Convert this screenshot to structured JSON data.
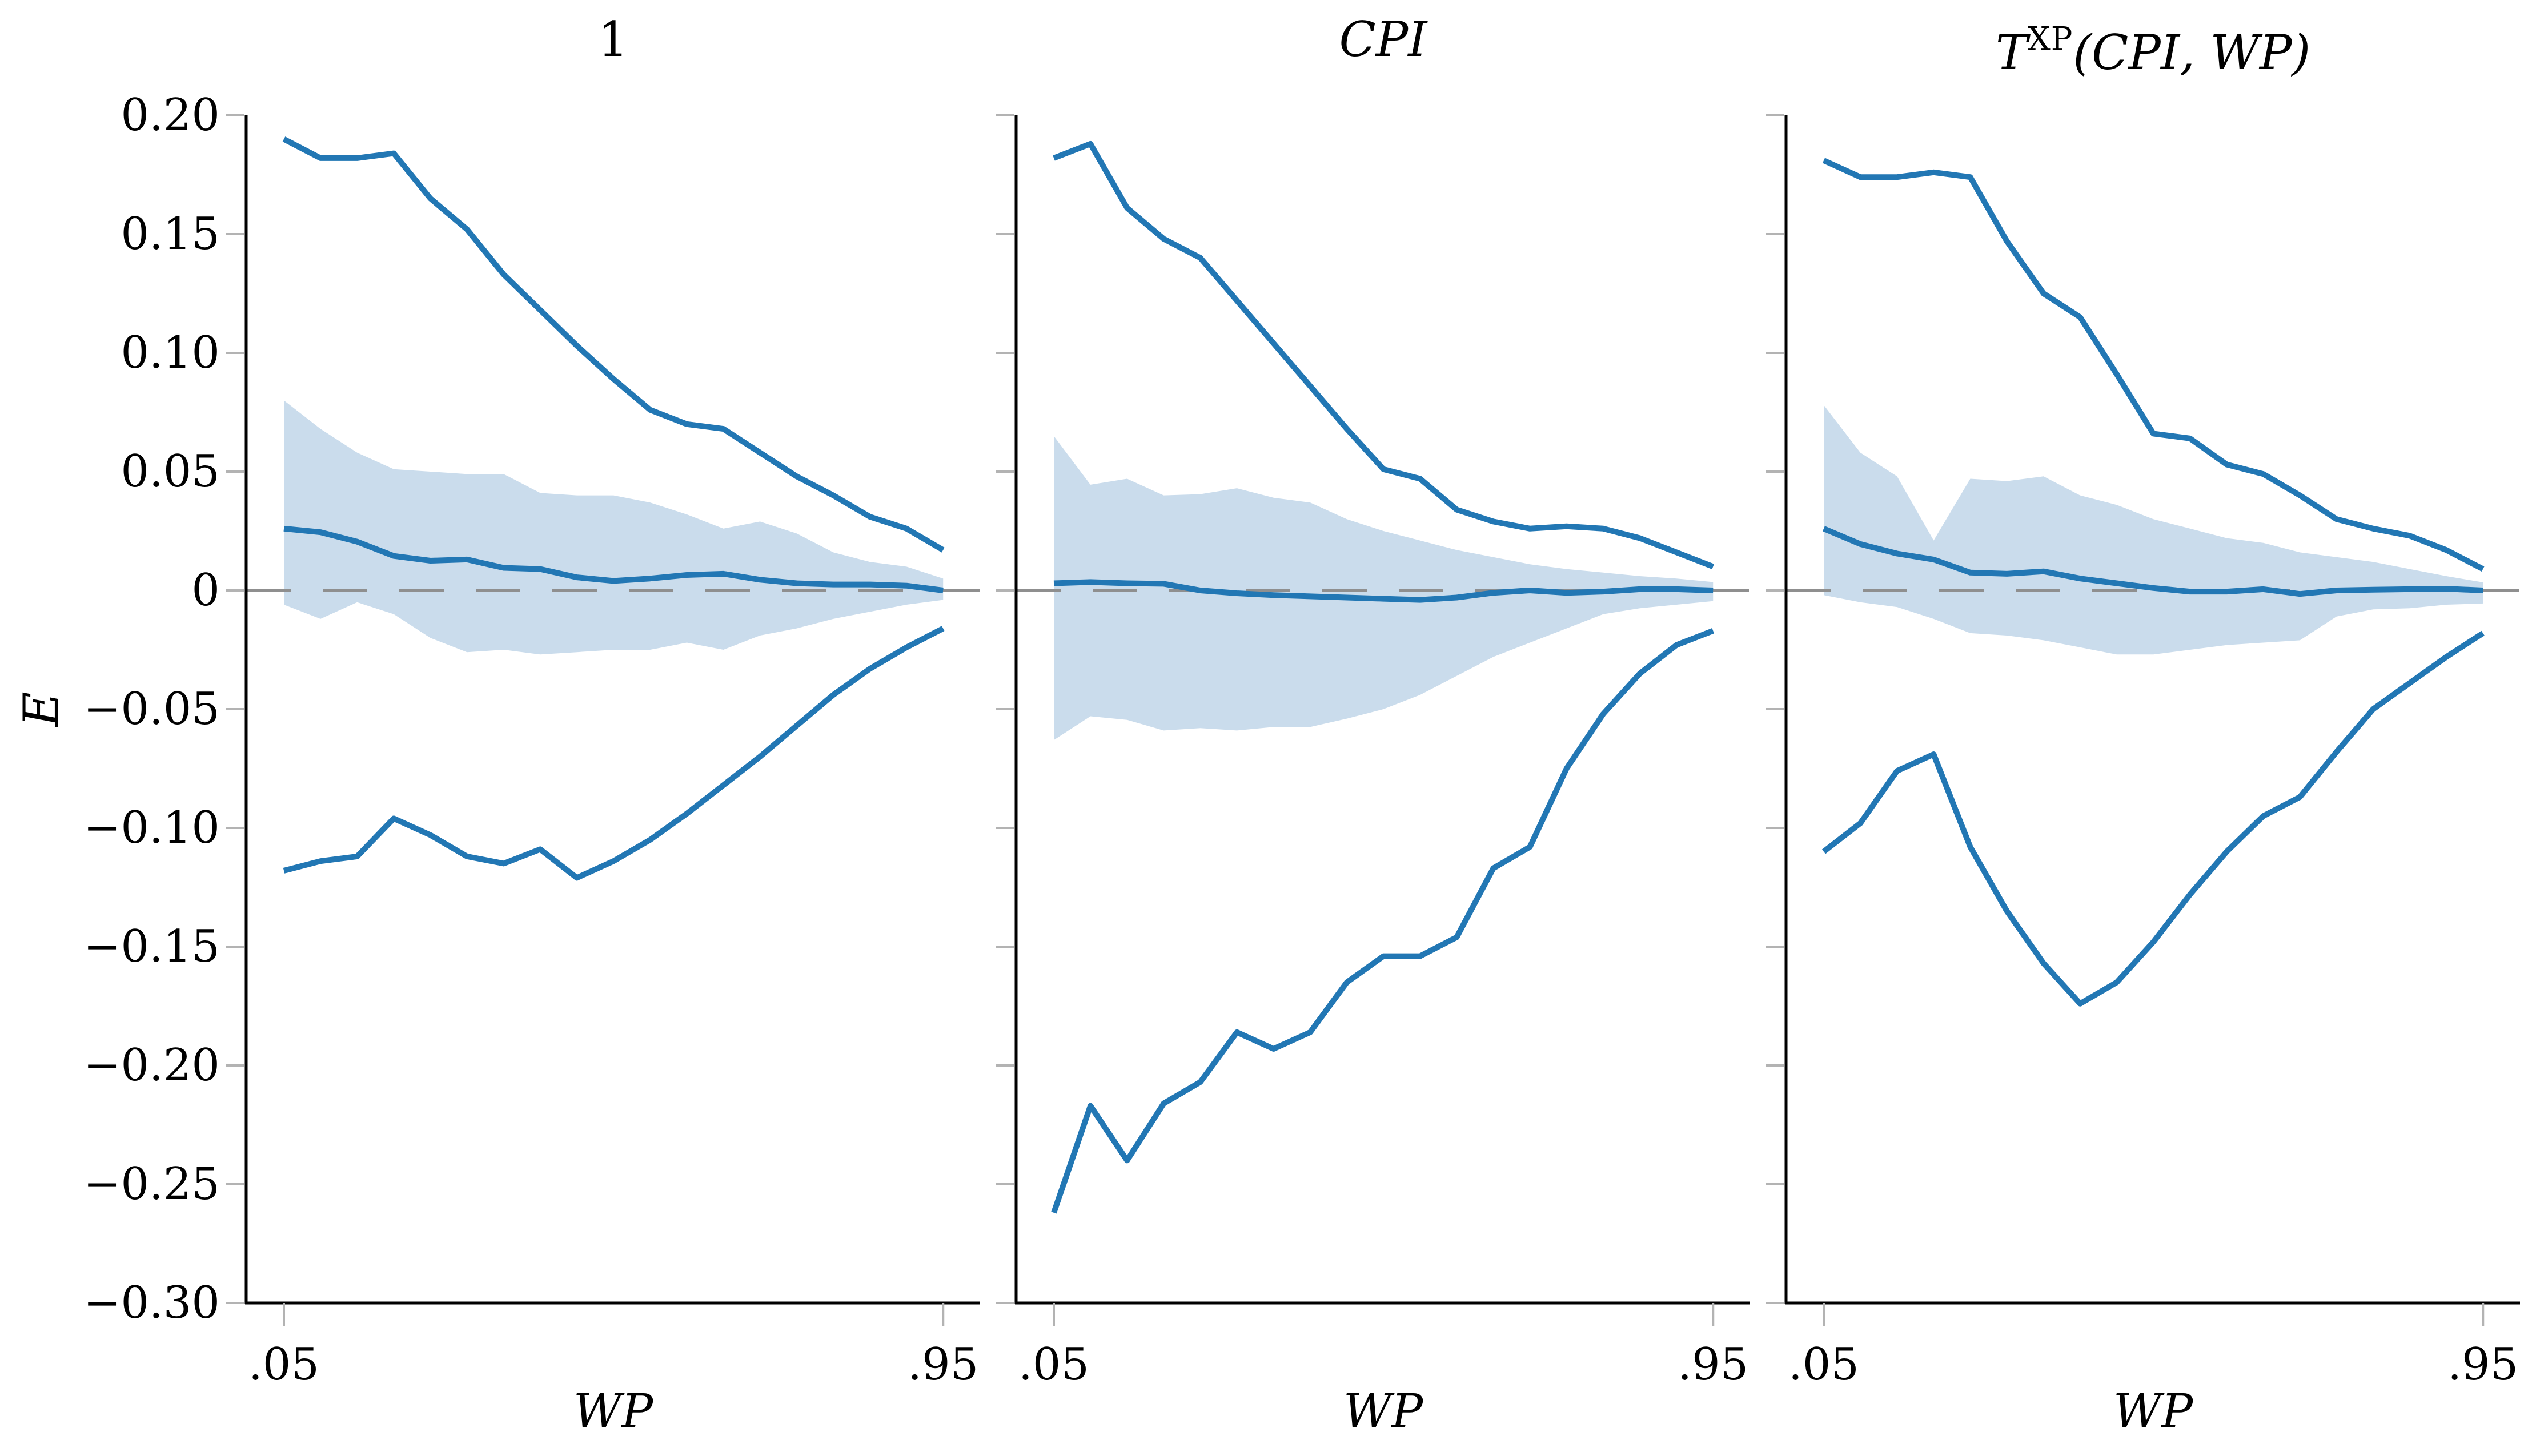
{
  "figure": {
    "y_axis": {
      "label": "E",
      "min": -0.3,
      "max": 0.2,
      "ticks": [
        {
          "label": "0.20",
          "value": 0.2
        },
        {
          "label": "0.15",
          "value": 0.15
        },
        {
          "label": "0.10",
          "value": 0.1
        },
        {
          "label": "0.05",
          "value": 0.05
        },
        {
          "label": "0",
          "value": 0.0
        },
        {
          "label": "−0.05",
          "value": -0.05
        },
        {
          "label": "−0.10",
          "value": -0.1
        },
        {
          "label": "−0.15",
          "value": -0.15
        },
        {
          "label": "−0.20",
          "value": -0.2
        },
        {
          "label": "−0.25",
          "value": -0.25
        },
        {
          "label": "−0.30",
          "value": -0.3
        }
      ]
    },
    "x_axis": {
      "label": "WP",
      "tick_labels": [
        ".05",
        ".95"
      ],
      "tick_values": [
        0.05,
        0.95
      ]
    },
    "colors": {
      "line": "#2277b4",
      "band": "#cadcec",
      "zero_line": "#8f8f8f",
      "tick": "#b3b3b3",
      "spine": "#000000"
    }
  },
  "chart_data": [
    {
      "type": "line",
      "title": "1",
      "xlabel": "WP",
      "ylabel": "E",
      "ylim": [
        -0.3,
        0.2
      ],
      "xlim": [
        0.05,
        0.95
      ],
      "grid": false,
      "reference_line_y": 0,
      "x": [
        0.05,
        0.1,
        0.15,
        0.2,
        0.25,
        0.3,
        0.35,
        0.4,
        0.45,
        0.5,
        0.55,
        0.6,
        0.65,
        0.7,
        0.75,
        0.8,
        0.85,
        0.9,
        0.95
      ],
      "series": [
        {
          "name": "upper-bound-line",
          "values": [
            0.19,
            0.182,
            0.182,
            0.184,
            0.165,
            0.152,
            0.133,
            0.118,
            0.103,
            0.089,
            0.076,
            0.07,
            0.068,
            0.058,
            0.048,
            0.04,
            0.031,
            0.026,
            0.017
          ]
        },
        {
          "name": "point-estimate-line",
          "values": [
            0.026,
            0.0245,
            0.0205,
            0.0145,
            0.0125,
            0.013,
            0.0095,
            0.009,
            0.0055,
            0.004,
            0.005,
            0.0065,
            0.007,
            0.0045,
            0.003,
            0.0025,
            0.0025,
            0.002,
            0.0
          ]
        },
        {
          "name": "lower-bound-line",
          "values": [
            -0.118,
            -0.114,
            -0.112,
            -0.096,
            -0.103,
            -0.112,
            -0.115,
            -0.109,
            -0.121,
            -0.114,
            -0.105,
            -0.094,
            -0.082,
            -0.07,
            -0.057,
            -0.044,
            -0.033,
            -0.024,
            -0.016
          ]
        }
      ],
      "band": {
        "upper": [
          0.08,
          0.068,
          0.058,
          0.051,
          0.05,
          0.049,
          0.049,
          0.041,
          0.04,
          0.04,
          0.037,
          0.032,
          0.026,
          0.029,
          0.024,
          0.016,
          0.012,
          0.01,
          0.005
        ],
        "lower": [
          -0.006,
          -0.012,
          -0.005,
          -0.01,
          -0.02,
          -0.026,
          -0.025,
          -0.027,
          -0.026,
          -0.025,
          -0.025,
          -0.022,
          -0.025,
          -0.019,
          -0.016,
          -0.012,
          -0.009,
          -0.006,
          -0.004
        ]
      }
    },
    {
      "type": "line",
      "title": "CPI",
      "xlabel": "WP",
      "ylabel": "E",
      "ylim": [
        -0.3,
        0.2
      ],
      "xlim": [
        0.05,
        0.95
      ],
      "grid": false,
      "reference_line_y": 0,
      "x": [
        0.05,
        0.1,
        0.15,
        0.2,
        0.25,
        0.3,
        0.35,
        0.4,
        0.45,
        0.5,
        0.55,
        0.6,
        0.65,
        0.7,
        0.75,
        0.8,
        0.85,
        0.9,
        0.95
      ],
      "series": [
        {
          "name": "upper-bound-line",
          "values": [
            0.182,
            0.188,
            0.161,
            0.148,
            0.14,
            0.122,
            0.104,
            0.086,
            0.068,
            0.051,
            0.047,
            0.034,
            0.029,
            0.026,
            0.027,
            0.026,
            0.022,
            0.016,
            0.01
          ]
        },
        {
          "name": "point-estimate-line",
          "values": [
            0.003,
            0.0035,
            0.003,
            0.0028,
            0.0,
            -0.0012,
            -0.002,
            -0.0025,
            -0.003,
            -0.0035,
            -0.004,
            -0.003,
            -0.001,
            0.0,
            -0.001,
            -0.0005,
            0.0005,
            0.0005,
            0.0
          ]
        },
        {
          "name": "lower-bound-line",
          "values": [
            -0.262,
            -0.217,
            -0.24,
            -0.216,
            -0.207,
            -0.186,
            -0.193,
            -0.186,
            -0.165,
            -0.154,
            -0.154,
            -0.146,
            -0.117,
            -0.108,
            -0.075,
            -0.052,
            -0.035,
            -0.023,
            -0.017
          ]
        }
      ],
      "band": {
        "upper": [
          0.065,
          0.0445,
          0.047,
          0.04,
          0.0405,
          0.043,
          0.039,
          0.037,
          0.03,
          0.025,
          0.021,
          0.017,
          0.014,
          0.011,
          0.009,
          0.0075,
          0.006,
          0.005,
          0.0035
        ],
        "lower": [
          -0.063,
          -0.053,
          -0.0545,
          -0.059,
          -0.058,
          -0.059,
          -0.0575,
          -0.0575,
          -0.054,
          -0.05,
          -0.044,
          -0.036,
          -0.028,
          -0.022,
          -0.016,
          -0.01,
          -0.0075,
          -0.006,
          -0.0045
        ]
      }
    },
    {
      "type": "line",
      "title": "TXP(CPI, WP)",
      "title_base": "T",
      "title_sup": "XP",
      "title_args": "(CPI, WP)",
      "xlabel": "WP",
      "ylabel": "E",
      "ylim": [
        -0.3,
        0.2
      ],
      "xlim": [
        0.05,
        0.95
      ],
      "grid": false,
      "reference_line_y": 0,
      "x": [
        0.05,
        0.1,
        0.15,
        0.2,
        0.25,
        0.3,
        0.35,
        0.4,
        0.45,
        0.5,
        0.55,
        0.6,
        0.65,
        0.7,
        0.75,
        0.8,
        0.85,
        0.9,
        0.95
      ],
      "series": [
        {
          "name": "upper-bound-line",
          "values": [
            0.181,
            0.174,
            0.174,
            0.176,
            0.174,
            0.147,
            0.125,
            0.115,
            0.091,
            0.066,
            0.064,
            0.053,
            0.049,
            0.04,
            0.03,
            0.026,
            0.023,
            0.017,
            0.009
          ]
        },
        {
          "name": "point-estimate-line",
          "values": [
            0.026,
            0.0195,
            0.0155,
            0.013,
            0.0075,
            0.007,
            0.008,
            0.005,
            0.003,
            0.001,
            -0.0005,
            -0.0005,
            0.0005,
            -0.0015,
            0.0,
            0.0003,
            0.0005,
            0.0007,
            0.0
          ]
        },
        {
          "name": "lower-bound-line",
          "values": [
            -0.11,
            -0.098,
            -0.076,
            -0.069,
            -0.108,
            -0.135,
            -0.157,
            -0.174,
            -0.165,
            -0.148,
            -0.128,
            -0.11,
            -0.095,
            -0.087,
            -0.068,
            -0.05,
            -0.039,
            -0.028,
            -0.018
          ]
        }
      ],
      "band": {
        "upper": [
          0.078,
          0.058,
          0.048,
          0.021,
          0.047,
          0.046,
          0.048,
          0.04,
          0.036,
          0.03,
          0.026,
          0.022,
          0.02,
          0.016,
          0.014,
          0.012,
          0.009,
          0.006,
          0.0034
        ],
        "lower": [
          -0.002,
          -0.005,
          -0.007,
          -0.012,
          -0.018,
          -0.019,
          -0.021,
          -0.024,
          -0.027,
          -0.027,
          -0.025,
          -0.023,
          -0.022,
          -0.021,
          -0.011,
          -0.008,
          -0.0075,
          -0.006,
          -0.0055
        ]
      }
    }
  ]
}
